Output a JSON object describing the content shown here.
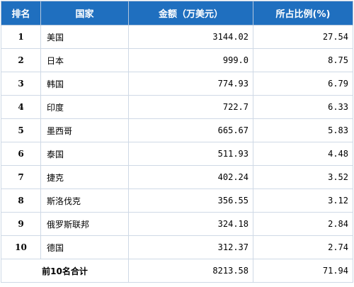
{
  "table": {
    "headers": {
      "rank": "排名",
      "country": "国家",
      "amount": "金额（万美元）",
      "share": "所占比例(%)"
    },
    "rows": [
      {
        "rank": "1",
        "country": "美国",
        "amount": "3144.02",
        "share": "27.54"
      },
      {
        "rank": "2",
        "country": "日本",
        "amount": "999.0",
        "share": "8.75"
      },
      {
        "rank": "3",
        "country": "韩国",
        "amount": "774.93",
        "share": "6.79"
      },
      {
        "rank": "4",
        "country": "印度",
        "amount": "722.7",
        "share": "6.33"
      },
      {
        "rank": "5",
        "country": "墨西哥",
        "amount": "665.67",
        "share": "5.83"
      },
      {
        "rank": "6",
        "country": "泰国",
        "amount": "511.93",
        "share": "4.48"
      },
      {
        "rank": "7",
        "country": "捷克",
        "amount": "402.24",
        "share": "3.52"
      },
      {
        "rank": "8",
        "country": "斯洛伐克",
        "amount": "356.55",
        "share": "3.12"
      },
      {
        "rank": "9",
        "country": "俄罗斯联邦",
        "amount": "324.18",
        "share": "2.84"
      },
      {
        "rank": "10",
        "country": "德国",
        "amount": "312.37",
        "share": "2.74"
      }
    ],
    "total": {
      "label": "前10名合计",
      "amount": "8213.58",
      "share": "71.94"
    }
  },
  "colors": {
    "header_background": "#1f6fbf",
    "header_text": "#ffffff",
    "border": "#cfd9e6"
  }
}
